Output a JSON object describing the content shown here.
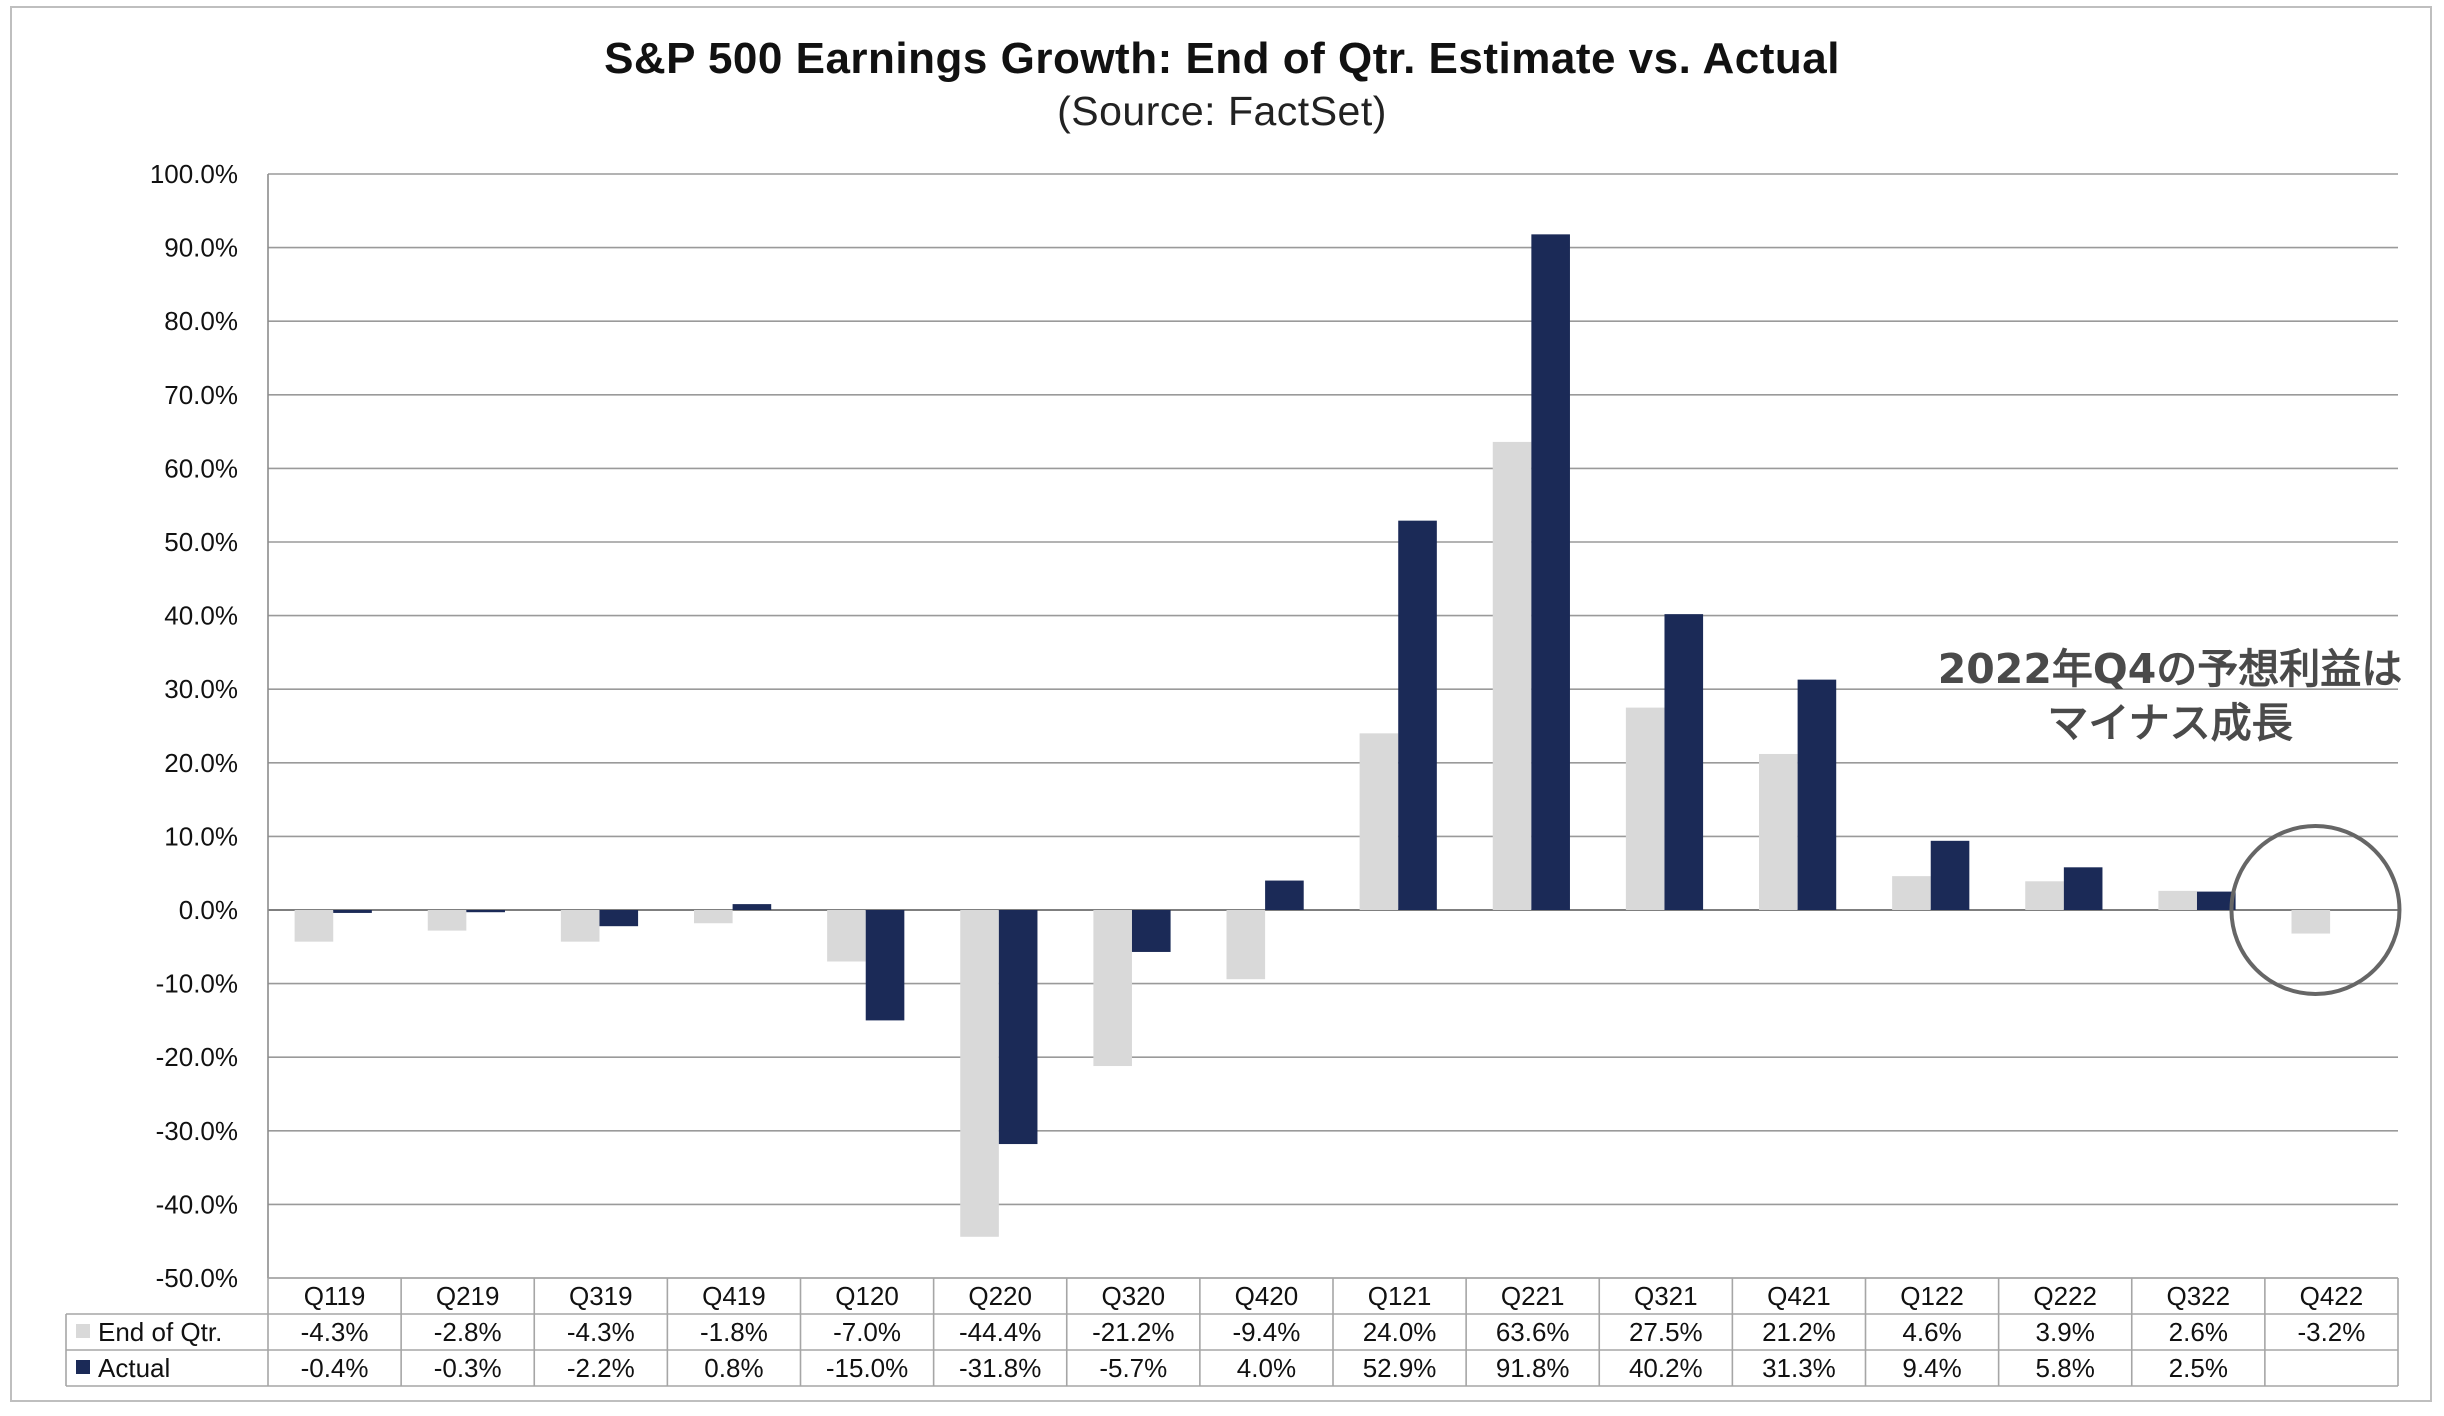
{
  "chart_data": {
    "type": "bar",
    "title": "S&P 500 Earnings Growth: End of Qtr. Estimate vs. Actual",
    "subtitle": "(Source: FactSet)",
    "categories": [
      "Q119",
      "Q219",
      "Q319",
      "Q419",
      "Q120",
      "Q220",
      "Q320",
      "Q420",
      "Q121",
      "Q221",
      "Q321",
      "Q421",
      "Q122",
      "Q222",
      "Q322",
      "Q422"
    ],
    "series": [
      {
        "name": "End of Qtr.",
        "color": "#d9d9d9",
        "values": [
          -4.3,
          -2.8,
          -4.3,
          -1.8,
          -7.0,
          -44.4,
          -21.2,
          -9.4,
          24.0,
          63.6,
          27.5,
          21.2,
          4.6,
          3.9,
          2.6,
          -3.2
        ],
        "labels": [
          "-4.3%",
          "-2.8%",
          "-4.3%",
          "-1.8%",
          "-7.0%",
          "-44.4%",
          "-21.2%",
          "-9.4%",
          "24.0%",
          "63.6%",
          "27.5%",
          "21.2%",
          "4.6%",
          "3.9%",
          "2.6%",
          "-3.2%"
        ]
      },
      {
        "name": "Actual",
        "color": "#1b2a57",
        "values": [
          -0.4,
          -0.3,
          -2.2,
          0.8,
          -15.0,
          -31.8,
          -5.7,
          4.0,
          52.9,
          91.8,
          40.2,
          31.3,
          9.4,
          5.8,
          2.5,
          null
        ],
        "labels": [
          "-0.4%",
          "-0.3%",
          "-2.2%",
          "0.8%",
          "-15.0%",
          "-31.8%",
          "-5.7%",
          "4.0%",
          "52.9%",
          "91.8%",
          "40.2%",
          "31.3%",
          "9.4%",
          "5.8%",
          "2.5%",
          ""
        ]
      }
    ],
    "ylim": [
      -50,
      100
    ],
    "yticks": [
      "100.0%",
      "90.0%",
      "80.0%",
      "70.0%",
      "60.0%",
      "50.0%",
      "40.0%",
      "30.0%",
      "20.0%",
      "10.0%",
      "0.0%",
      "-10.0%",
      "-20.0%",
      "-30.0%",
      "-40.0%",
      "-50.0%"
    ],
    "grid": true,
    "legend": "data table below chart",
    "highlight_category": "Q422"
  },
  "annotation": {
    "line1": "2022年Q4の予想利益は",
    "line2": "マイナス成長"
  }
}
